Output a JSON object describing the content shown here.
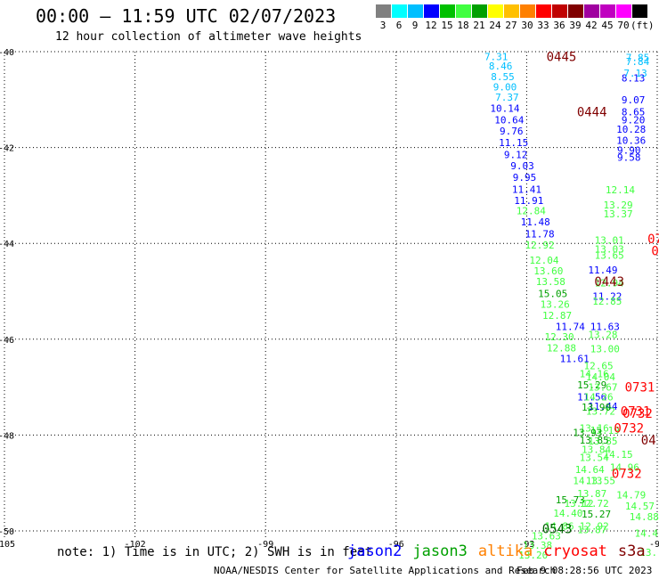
{
  "header": {
    "title": "00:00 – 11:59 UTC 02/07/2023",
    "subtitle": "12 hour collection of altimeter wave heights"
  },
  "scale": {
    "colors": [
      "#808080",
      "#00ffff",
      "#00bfff",
      "#0000ff",
      "#00c000",
      "#40ff40",
      "#00a000",
      "#ffff00",
      "#ffc000",
      "#ff8000",
      "#ff0000",
      "#c00000",
      "#800000",
      "#a000a0",
      "#c000c0",
      "#ff00ff",
      "#000000"
    ],
    "labels": [
      "3",
      "6",
      "9",
      "12",
      "15",
      "18",
      "21",
      "24",
      "27",
      "30",
      "33",
      "36",
      "39",
      "42",
      "45",
      "70",
      "(ft)"
    ]
  },
  "axes": {
    "lat_labels": [
      "-40",
      "-42",
      "-44",
      "-46",
      "-48",
      "-50"
    ],
    "lon_labels": [
      "-105",
      "-102",
      "-99",
      "-96",
      "-93",
      "-90"
    ]
  },
  "passes": [
    {
      "label": "0445",
      "color": "#800000",
      "lat": -40.1,
      "lon": -92.2
    },
    {
      "label": "0444",
      "color": "#800000",
      "lat": -41.25,
      "lon": -91.5
    },
    {
      "label": "0443",
      "color": "#800000",
      "lat": -44.8,
      "lon": -91.1
    },
    {
      "label": "0543",
      "color": "#006400",
      "lat": -49.95,
      "lon": -92.3
    },
    {
      "label": "0731",
      "color": "#ff0000",
      "lat": -47.0,
      "lon": -90.4
    },
    {
      "label": "0731",
      "color": "#ff0000",
      "lat": -47.5,
      "lon": -90.5
    },
    {
      "label": "0732",
      "color": "#ff0000",
      "lat": -47.55,
      "lon": -90.45
    },
    {
      "label": "0732",
      "color": "#ff0000",
      "lat": -47.85,
      "lon": -90.65
    },
    {
      "label": "0732",
      "color": "#ff0000",
      "lat": -48.8,
      "lon": -90.7
    },
    {
      "label": "04",
      "color": "#800000",
      "lat": -48.1,
      "lon": -90.2
    },
    {
      "label": "07",
      "color": "#ff0000",
      "lat": -43.9,
      "lon": -90.05
    },
    {
      "label": "0",
      "color": "#ff0000",
      "lat": -44.15,
      "lon": -90.05
    }
  ],
  "tracks": [
    {
      "name": "cryosat-a",
      "color": "#00bfff",
      "points": [
        {
          "lat": -40.1,
          "lon": -93.7,
          "v": "7.31"
        },
        {
          "lat": -40.3,
          "lon": -93.6,
          "v": "8.46"
        },
        {
          "lat": -40.52,
          "lon": -93.55,
          "v": "8.55"
        },
        {
          "lat": -40.73,
          "lon": -93.5,
          "v": "9.00"
        },
        {
          "lat": -40.95,
          "lon": -93.45,
          "v": "7.37"
        }
      ]
    },
    {
      "name": "cryosat-b",
      "color": "#0000ff",
      "points": [
        {
          "lat": -41.18,
          "lon": -93.5,
          "v": "10.14"
        },
        {
          "lat": -41.42,
          "lon": -93.4,
          "v": "10.64"
        },
        {
          "lat": -41.65,
          "lon": -93.35,
          "v": "9.76"
        },
        {
          "lat": -41.9,
          "lon": -93.3,
          "v": "11.15"
        },
        {
          "lat": -42.15,
          "lon": -93.25,
          "v": "9.12"
        },
        {
          "lat": -42.38,
          "lon": -93.1,
          "v": "9.03"
        },
        {
          "lat": -42.62,
          "lon": -93.05,
          "v": "9.95"
        },
        {
          "lat": -42.87,
          "lon": -93.0,
          "v": "11.41"
        },
        {
          "lat": -43.1,
          "lon": -92.95,
          "v": "11.91"
        },
        {
          "lat": -43.55,
          "lon": -92.8,
          "v": "11.48"
        },
        {
          "lat": -43.8,
          "lon": -92.7,
          "v": "11.78"
        }
      ]
    },
    {
      "name": "cryosat-c",
      "color": "#40ff40",
      "points": [
        {
          "lat": -43.32,
          "lon": -92.9,
          "v": "12.84"
        },
        {
          "lat": -44.03,
          "lon": -92.7,
          "v": "12.92"
        },
        {
          "lat": -44.35,
          "lon": -92.6,
          "v": "12.04"
        },
        {
          "lat": -44.57,
          "lon": -92.5,
          "v": "13.60"
        },
        {
          "lat": -44.8,
          "lon": -92.45,
          "v": "13.58"
        },
        {
          "lat": -45.27,
          "lon": -92.35,
          "v": "13.26"
        },
        {
          "lat": -45.5,
          "lon": -92.3,
          "v": "12.87"
        },
        {
          "lat": -45.95,
          "lon": -92.25,
          "v": "12.30"
        },
        {
          "lat": -46.18,
          "lon": -92.2,
          "v": "12.88"
        }
      ]
    },
    {
      "name": "cryosat-d",
      "color": "#00a000",
      "points": [
        {
          "lat": -45.05,
          "lon": -92.4,
          "v": "15.05"
        },
        {
          "lat": -46.95,
          "lon": -91.5,
          "v": "15.29"
        },
        {
          "lat": -49.35,
          "lon": -92.0,
          "v": "15.73"
        },
        {
          "lat": -49.65,
          "lon": -91.4,
          "v": "15.27"
        }
      ]
    },
    {
      "name": "cryosat-e",
      "color": "#0000ff",
      "points": [
        {
          "lat": -45.73,
          "lon": -92.0,
          "v": "11.74"
        },
        {
          "lat": -46.4,
          "lon": -91.9,
          "v": "11.61"
        },
        {
          "lat": -45.73,
          "lon": -91.2,
          "v": "11.63"
        },
        {
          "lat": -47.2,
          "lon": -91.5,
          "v": "11.56"
        },
        {
          "lat": -47.4,
          "lon": -91.25,
          "v": "11.44"
        },
        {
          "lat": -41.0,
          "lon": -90.55,
          "v": "9.07"
        },
        {
          "lat": -41.25,
          "lon": -90.55,
          "v": "8.65"
        },
        {
          "lat": -41.42,
          "lon": -90.55,
          "v": "9.20"
        },
        {
          "lat": -41.62,
          "lon": -90.6,
          "v": "10.28"
        },
        {
          "lat": -41.85,
          "lon": -90.6,
          "v": "10.36"
        },
        {
          "lat": -42.05,
          "lon": -90.65,
          "v": "9.90"
        },
        {
          "lat": -42.2,
          "lon": -90.65,
          "v": "9.58"
        },
        {
          "lat": -44.55,
          "lon": -91.25,
          "v": "11.49"
        },
        {
          "lat": -45.1,
          "lon": -91.15,
          "v": "11.22"
        },
        {
          "lat": -40.55,
          "lon": -90.55,
          "v": "8.13"
        }
      ]
    },
    {
      "name": "cryosat-f",
      "color": "#00bfff",
      "points": [
        {
          "lat": -40.12,
          "lon": -90.45,
          "v": "7.85"
        },
        {
          "lat": -40.2,
          "lon": -90.45,
          "v": "7.84"
        },
        {
          "lat": -40.45,
          "lon": -90.5,
          "v": "7.13"
        }
      ]
    },
    {
      "name": "cryosat-g",
      "color": "#40ff40",
      "points": [
        {
          "lat": -42.88,
          "lon": -90.85,
          "v": "12.14"
        },
        {
          "lat": -43.2,
          "lon": -90.9,
          "v": "13.29"
        },
        {
          "lat": -43.38,
          "lon": -90.9,
          "v": "13.37"
        },
        {
          "lat": -43.93,
          "lon": -91.1,
          "v": "13.01"
        },
        {
          "lat": -44.12,
          "lon": -91.1,
          "v": "13.03"
        },
        {
          "lat": -44.25,
          "lon": -91.1,
          "v": "13.65"
        },
        {
          "lat": -44.82,
          "lon": -91.1,
          "v": "12.94"
        },
        {
          "lat": -45.2,
          "lon": -91.15,
          "v": "12.85"
        },
        {
          "lat": -45.9,
          "lon": -91.25,
          "v": "13.28"
        },
        {
          "lat": -46.2,
          "lon": -91.2,
          "v": "13.00"
        },
        {
          "lat": -46.55,
          "lon": -91.35,
          "v": "12.65"
        },
        {
          "lat": -46.72,
          "lon": -91.45,
          "v": "14.16"
        },
        {
          "lat": -46.78,
          "lon": -91.3,
          "v": "14.04"
        },
        {
          "lat": -47.0,
          "lon": -91.25,
          "v": "13.67"
        },
        {
          "lat": -47.2,
          "lon": -91.35,
          "v": "14.26"
        },
        {
          "lat": -47.5,
          "lon": -91.3,
          "v": "13.72"
        },
        {
          "lat": -47.85,
          "lon": -91.45,
          "v": "13.16"
        },
        {
          "lat": -47.9,
          "lon": -91.2,
          "v": "15.19"
        },
        {
          "lat": -48.12,
          "lon": -91.25,
          "v": "13.85"
        },
        {
          "lat": -48.3,
          "lon": -91.4,
          "v": "13.84"
        },
        {
          "lat": -48.47,
          "lon": -91.45,
          "v": "13.54"
        },
        {
          "lat": -48.4,
          "lon": -90.9,
          "v": "14.15"
        },
        {
          "lat": -48.72,
          "lon": -91.55,
          "v": "14.64"
        },
        {
          "lat": -48.67,
          "lon": -90.75,
          "v": "14.96"
        },
        {
          "lat": -48.95,
          "lon": -91.6,
          "v": "14.13"
        },
        {
          "lat": -48.95,
          "lon": -91.3,
          "v": "13.55"
        },
        {
          "lat": -49.22,
          "lon": -91.5,
          "v": "13.87"
        },
        {
          "lat": -49.42,
          "lon": -91.8,
          "v": "13.12"
        },
        {
          "lat": -49.42,
          "lon": -91.45,
          "v": "12.72"
        },
        {
          "lat": -49.25,
          "lon": -90.6,
          "v": "14.79"
        },
        {
          "lat": -49.63,
          "lon": -92.05,
          "v": "14.40"
        },
        {
          "lat": -49.48,
          "lon": -90.4,
          "v": "14.57"
        },
        {
          "lat": -49.9,
          "lon": -92.25,
          "v": "14.86"
        },
        {
          "lat": -49.9,
          "lon": -91.45,
          "v": "12.92"
        },
        {
          "lat": -49.97,
          "lon": -91.5,
          "v": "13.87"
        },
        {
          "lat": -49.7,
          "lon": -90.3,
          "v": "14.88"
        },
        {
          "lat": -50.1,
          "lon": -92.55,
          "v": "13.63"
        },
        {
          "lat": -50.3,
          "lon": -92.75,
          "v": "13.38"
        },
        {
          "lat": -50.05,
          "lon": -90.25,
          "v": "14.4"
        },
        {
          "lat": -50.5,
          "lon": -92.85,
          "v": "13.20"
        },
        {
          "lat": -50.45,
          "lon": -90.2,
          "v": "13."
        }
      ]
    },
    {
      "name": "cryosat-h",
      "color": "#00a000",
      "points": [
        {
          "lat": -47.42,
          "lon": -91.4,
          "v": "13.90"
        },
        {
          "lat": -47.95,
          "lon": -91.6,
          "v": "13.93"
        },
        {
          "lat": -48.1,
          "lon": -91.45,
          "v": "13.85"
        }
      ]
    }
  ],
  "footer": {
    "note": "note: 1) Time is in UTC; 2) SWH is in feet",
    "satellites": [
      {
        "label": "jason2",
        "color": "#0000ff"
      },
      {
        "label": "jason3",
        "color": "#00a000"
      },
      {
        "label": "altika",
        "color": "#ff8000"
      },
      {
        "label": "cryosat",
        "color": "#ff0000"
      },
      {
        "label": "s3a",
        "color": "#800000"
      }
    ],
    "credit": "NOAA/NESDIS Center for Satellite Applications and Research",
    "timestamp": "Feb  9 08:28:56 UTC 2023"
  }
}
